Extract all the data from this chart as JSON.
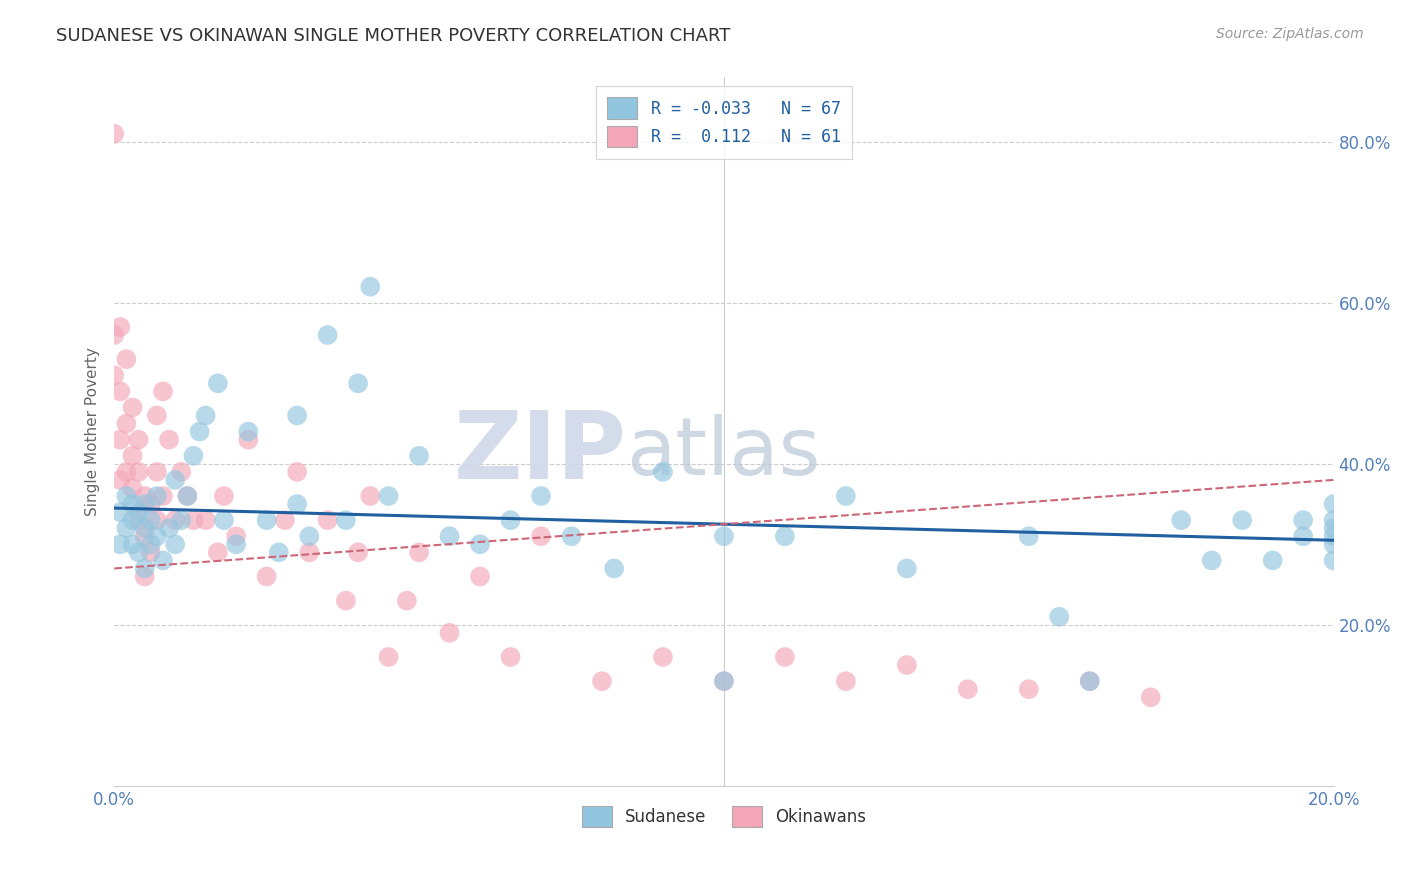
{
  "title": "SUDANESE VS OKINAWAN SINGLE MOTHER POVERTY CORRELATION CHART",
  "source": "Source: ZipAtlas.com",
  "ylabel": "Single Mother Poverty",
  "xlim": [
    0.0,
    0.2
  ],
  "ylim": [
    0.0,
    0.88
  ],
  "xtick_positions": [
    0.0,
    0.2
  ],
  "xtick_labels": [
    "0.0%",
    "20.0%"
  ],
  "ytick_positions": [
    0.2,
    0.4,
    0.6,
    0.8
  ],
  "ytick_labels": [
    "20.0%",
    "40.0%",
    "60.0%",
    "80.0%"
  ],
  "blue_R": -0.033,
  "blue_N": 67,
  "pink_R": 0.112,
  "pink_N": 61,
  "watermark_zip": "ZIP",
  "watermark_atlas": "atlas",
  "blue_color": "#92c5de",
  "pink_color": "#f4a6b8",
  "blue_line_color": "#2060a0",
  "pink_line_color": "#cc6677",
  "sudanese_x": [
    0.001,
    0.001,
    0.002,
    0.002,
    0.003,
    0.003,
    0.003,
    0.004,
    0.004,
    0.005,
    0.005,
    0.005,
    0.006,
    0.006,
    0.007,
    0.007,
    0.008,
    0.009,
    0.01,
    0.01,
    0.011,
    0.012,
    0.013,
    0.014,
    0.015,
    0.017,
    0.018,
    0.02,
    0.022,
    0.025,
    0.027,
    0.03,
    0.03,
    0.032,
    0.035,
    0.038,
    0.04,
    0.042,
    0.045,
    0.05,
    0.055,
    0.06,
    0.065,
    0.07,
    0.075,
    0.082,
    0.09,
    0.1,
    0.1,
    0.11,
    0.12,
    0.13,
    0.15,
    0.155,
    0.16,
    0.175,
    0.18,
    0.185,
    0.19,
    0.195,
    0.195,
    0.2,
    0.2,
    0.2,
    0.2,
    0.2,
    0.2
  ],
  "sudanese_y": [
    0.34,
    0.3,
    0.32,
    0.36,
    0.3,
    0.33,
    0.35,
    0.29,
    0.34,
    0.27,
    0.32,
    0.35,
    0.3,
    0.33,
    0.31,
    0.36,
    0.28,
    0.32,
    0.3,
    0.38,
    0.33,
    0.36,
    0.41,
    0.44,
    0.46,
    0.5,
    0.33,
    0.3,
    0.44,
    0.33,
    0.29,
    0.46,
    0.35,
    0.31,
    0.56,
    0.33,
    0.5,
    0.62,
    0.36,
    0.41,
    0.31,
    0.3,
    0.33,
    0.36,
    0.31,
    0.27,
    0.39,
    0.13,
    0.31,
    0.31,
    0.36,
    0.27,
    0.31,
    0.21,
    0.13,
    0.33,
    0.28,
    0.33,
    0.28,
    0.31,
    0.33,
    0.28,
    0.33,
    0.35,
    0.31,
    0.3,
    0.32
  ],
  "okinawan_x": [
    0.0,
    0.0,
    0.0,
    0.001,
    0.001,
    0.001,
    0.001,
    0.002,
    0.002,
    0.002,
    0.003,
    0.003,
    0.003,
    0.004,
    0.004,
    0.004,
    0.005,
    0.005,
    0.005,
    0.006,
    0.006,
    0.007,
    0.007,
    0.007,
    0.008,
    0.008,
    0.009,
    0.01,
    0.011,
    0.012,
    0.013,
    0.015,
    0.017,
    0.018,
    0.02,
    0.022,
    0.025,
    0.028,
    0.03,
    0.032,
    0.035,
    0.038,
    0.04,
    0.042,
    0.045,
    0.048,
    0.05,
    0.055,
    0.06,
    0.065,
    0.07,
    0.08,
    0.09,
    0.1,
    0.11,
    0.12,
    0.13,
    0.14,
    0.15,
    0.16,
    0.17
  ],
  "okinawan_y": [
    0.81,
    0.56,
    0.51,
    0.57,
    0.49,
    0.43,
    0.38,
    0.53,
    0.45,
    0.39,
    0.47,
    0.41,
    0.37,
    0.43,
    0.39,
    0.33,
    0.36,
    0.31,
    0.26,
    0.35,
    0.29,
    0.46,
    0.39,
    0.33,
    0.49,
    0.36,
    0.43,
    0.33,
    0.39,
    0.36,
    0.33,
    0.33,
    0.29,
    0.36,
    0.31,
    0.43,
    0.26,
    0.33,
    0.39,
    0.29,
    0.33,
    0.23,
    0.29,
    0.36,
    0.16,
    0.23,
    0.29,
    0.19,
    0.26,
    0.16,
    0.31,
    0.13,
    0.16,
    0.13,
    0.16,
    0.13,
    0.15,
    0.12,
    0.12,
    0.13,
    0.11
  ]
}
